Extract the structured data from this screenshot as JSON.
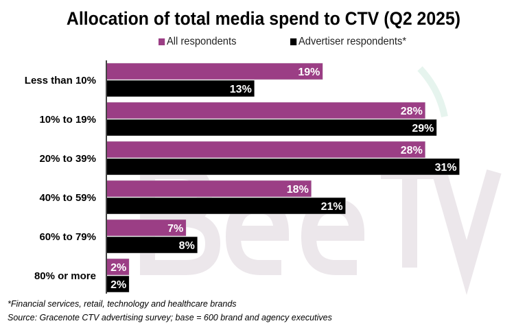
{
  "chart_data": {
    "type": "bar",
    "orientation": "horizontal",
    "title": "Allocation of total media spend to CTV (Q2 2025)",
    "categories": [
      "Less than 10%",
      "10% to 19%",
      "20% to 39%",
      "40% to 59%",
      "60% to 79%",
      "80% or more"
    ],
    "series": [
      {
        "name": "All respondents",
        "color": "#9b3e85",
        "values": [
          19,
          28,
          28,
          18,
          7,
          2
        ]
      },
      {
        "name": "Advertiser respondents*",
        "color": "#000000",
        "values": [
          13,
          29,
          31,
          21,
          8,
          2
        ]
      }
    ],
    "value_suffix": "%",
    "xlim": [
      0,
      31
    ],
    "grid": false,
    "legend_position": "top",
    "data_labels": true
  },
  "footnotes": {
    "note": "*Financial services, retail, technology and healthcare brands",
    "source": "Source: Gracenote CTV advertising survey; base = 600  brand and agency executives"
  },
  "watermark": "BeetTV"
}
